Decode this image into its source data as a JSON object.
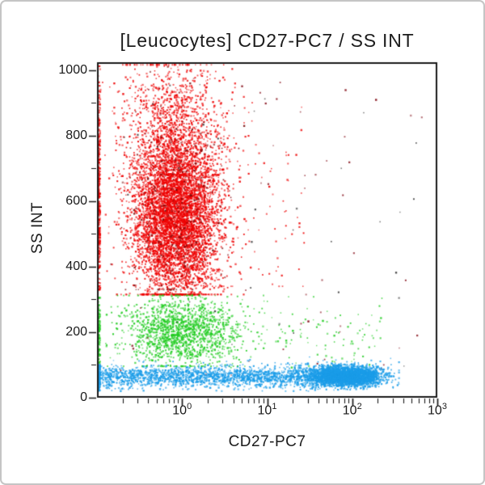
{
  "window": {
    "background": "#ffffff",
    "frame_border_color": "#c5c5c5"
  },
  "chart_data": {
    "type": "scatter",
    "title": "[Leucocytes] CD27-PC7 / SS INT",
    "xlabel": "CD27-PC7",
    "ylabel": "SS INT",
    "x_scale": "log10",
    "x_range_log10": [
      -1,
      3
    ],
    "x_tick_base": "10",
    "x_tick_exponents": [
      0,
      1,
      2,
      3
    ],
    "y_range": [
      0,
      1024
    ],
    "y_ticks": [
      0,
      200,
      400,
      600,
      800,
      1000
    ],
    "y_minor_step": 100,
    "grid": false,
    "axis_color": "#1a1a1a",
    "text_color": "#1c1c1c",
    "populations": [
      {
        "name": "granulocytes-core",
        "color": "#ee0000",
        "count": 5800,
        "x": {
          "dist": "gauss",
          "mean": -0.07,
          "sd": 0.26,
          "min": -0.99,
          "max": 1.35
        },
        "y": {
          "dist": "gauss",
          "mean": 555,
          "sd": 130,
          "min": 315,
          "max": 1018
        }
      },
      {
        "name": "granulocytes-upper",
        "color": "#ee0000",
        "count": 900,
        "x": {
          "dist": "gauss",
          "mean": -0.12,
          "sd": 0.3,
          "min": -0.99,
          "max": 1.1
        },
        "y": {
          "dist": "gauss",
          "mean": 830,
          "sd": 105,
          "min": 680,
          "max": 1016
        }
      },
      {
        "name": "granulocytes-left-edge",
        "color": "#ee0000",
        "count": 420,
        "x": {
          "dist": "uniform",
          "min": -0.995,
          "max": -0.962
        },
        "y": {
          "dist": "gauss",
          "mean": 620,
          "sd": 170,
          "min": 330,
          "max": 1012
        }
      },
      {
        "name": "granulocytes-dark-speckle",
        "color": "#7c0c0c",
        "count": 260,
        "x": {
          "dist": "gauss",
          "mean": -0.05,
          "sd": 0.28,
          "min": -0.99,
          "max": 1.2
        },
        "y": {
          "dist": "gauss",
          "mean": 570,
          "sd": 160,
          "min": 330,
          "max": 1010
        }
      },
      {
        "name": "granulocytes-right-tail",
        "color": "#ee0000",
        "count": 90,
        "x": {
          "dist": "uniform",
          "min": 0.35,
          "max": 1.45
        },
        "y": {
          "dist": "gauss",
          "mean": 560,
          "sd": 180,
          "min": 340,
          "max": 980
        }
      },
      {
        "name": "monocytes-core",
        "color": "#21cc21",
        "count": 1500,
        "x": {
          "dist": "gauss",
          "mean": 0.0,
          "sd": 0.33,
          "min": -0.99,
          "max": 1.5
        },
        "y": {
          "dist": "gauss",
          "mean": 203,
          "sd": 52,
          "min": 96,
          "max": 312
        }
      },
      {
        "name": "monocytes-left-edge",
        "color": "#21cc21",
        "count": 150,
        "x": {
          "dist": "uniform",
          "min": -0.995,
          "max": -0.962
        },
        "y": {
          "dist": "gauss",
          "mean": 200,
          "sd": 55,
          "min": 95,
          "max": 305
        }
      },
      {
        "name": "monocytes-right-tail",
        "color": "#21cc21",
        "count": 130,
        "x": {
          "dist": "uniform",
          "min": 0.4,
          "max": 2.35
        },
        "y": {
          "dist": "gauss",
          "mean": 195,
          "sd": 60,
          "min": 92,
          "max": 308
        }
      },
      {
        "name": "debris-dark-red",
        "color": "#8a1822",
        "count": 60,
        "x": {
          "dist": "uniform",
          "min": -0.9,
          "max": 2.85
        },
        "y": {
          "dist": "uniform",
          "min": 60,
          "max": 1000
        }
      },
      {
        "name": "debris-dark",
        "color": "#2e2e2e",
        "count": 40,
        "x": {
          "dist": "uniform",
          "min": -0.9,
          "max": 2.8
        },
        "y": {
          "dist": "uniform",
          "min": 50,
          "max": 1000
        }
      },
      {
        "name": "lymphocytes-band",
        "color": "#1a9ce8",
        "count": 1900,
        "x": {
          "dist": "uniform",
          "min": -0.99,
          "max": 1.75
        },
        "y": {
          "dist": "gauss",
          "mean": 64,
          "sd": 17,
          "min": 20,
          "max": 125
        }
      },
      {
        "name": "lymphocytes-cd27-bright",
        "color": "#1a9ce8",
        "count": 3200,
        "x": {
          "dist": "gauss",
          "mean": 1.93,
          "sd": 0.21,
          "min": 1.05,
          "max": 2.55
        },
        "y": {
          "dist": "gauss",
          "mean": 66,
          "sd": 15,
          "min": 22,
          "max": 120
        }
      },
      {
        "name": "lymphocytes-left-edge",
        "color": "#1a9ce8",
        "count": 200,
        "x": {
          "dist": "uniform",
          "min": -0.995,
          "max": -0.962
        },
        "y": {
          "dist": "gauss",
          "mean": 62,
          "sd": 18,
          "min": 20,
          "max": 115
        }
      }
    ]
  }
}
